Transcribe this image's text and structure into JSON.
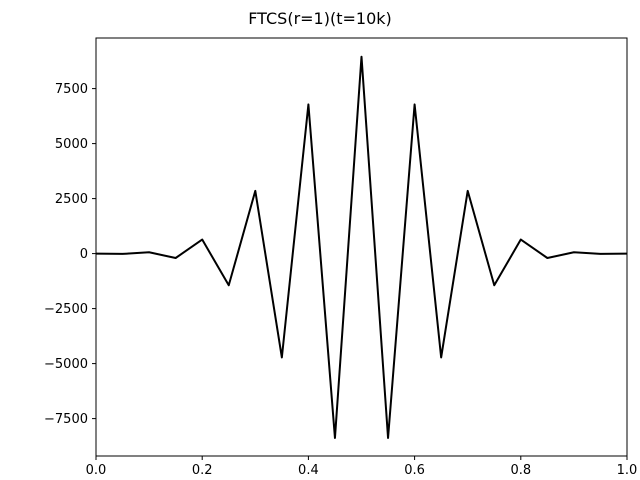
{
  "chart_data": {
    "type": "line",
    "title": "FTCS(r=1)(t=10k)",
    "xlabel": "",
    "ylabel": "",
    "xlim": [
      0,
      1
    ],
    "ylim": [
      -9200,
      9800
    ],
    "grid": false,
    "xticks": [
      0.0,
      0.2,
      0.4,
      0.6,
      0.8,
      1.0
    ],
    "xtick_labels": [
      "0.0",
      "0.2",
      "0.4",
      "0.6",
      "0.8",
      "1.0"
    ],
    "yticks": [
      -7500,
      -5000,
      -2500,
      0,
      2500,
      5000,
      7500
    ],
    "ytick_labels": [
      "−7500",
      "−5000",
      "−2500",
      "0",
      "2500",
      "5000",
      "7500"
    ],
    "series": [
      {
        "name": "FTCS",
        "color": "#000000",
        "x": [
          0.0,
          0.05,
          0.1,
          0.15,
          0.2,
          0.25,
          0.3,
          0.35,
          0.4,
          0.45,
          0.5,
          0.55,
          0.6,
          0.65,
          0.7,
          0.75,
          0.8,
          0.85,
          0.9,
          0.95,
          1.0
        ],
        "y": [
          0,
          -15,
          60,
          -200,
          640,
          -1440,
          2850,
          -4720,
          6780,
          -8380,
          8950,
          -8380,
          6780,
          -4720,
          2850,
          -1440,
          640,
          -200,
          60,
          -15,
          0
        ]
      }
    ]
  }
}
